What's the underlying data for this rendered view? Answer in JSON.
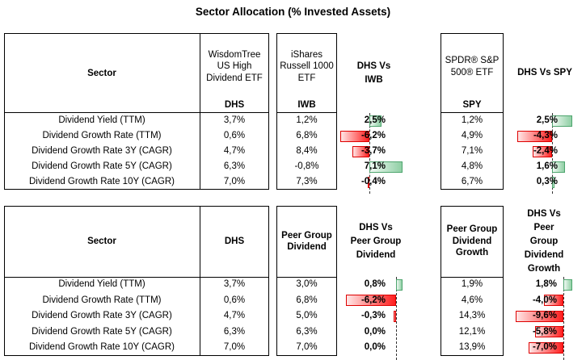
{
  "title": "Sector Allocation (% Invested Assets)",
  "colors": {
    "bar_positive_border": "#4EA56E",
    "bar_positive_fill": "#8FCFA4",
    "bar_negative_border": "#DE0000",
    "bar_negative_fill": "#FF1F1F",
    "axis_dash": "#333333"
  },
  "tables": [
    {
      "sector_header": "Sector",
      "col2": {
        "name_lines": [
          "WisdomTree",
          "US High",
          "Dividend ETF"
        ],
        "ticker": "DHS"
      },
      "col3": {
        "name_lines": [
          "iShares",
          "Russell 1000",
          "ETF"
        ],
        "ticker": "IWB"
      },
      "vs1": {
        "header_lines": [
          "DHS Vs",
          "IWB"
        ]
      },
      "col5": {
        "name_lines": [
          "SPDR® S&P",
          "500® ETF"
        ],
        "ticker": "SPY"
      },
      "vs2": {
        "header_lines": [
          "DHS Vs SPY"
        ]
      },
      "rows": [
        {
          "label": "Dividend Yield (TTM)",
          "col2": "3,7%",
          "col3": "1,2%",
          "vs1_text": "2,5%",
          "vs1_value": 2.5,
          "col5": "1,2%",
          "vs2_text": "2,5%",
          "vs2_value": 2.5
        },
        {
          "label": "Dividend Growth Rate (TTM)",
          "col2": "0,6%",
          "col3": "6,8%",
          "vs1_text": "-6,2%",
          "vs1_value": -6.2,
          "col5": "4,9%",
          "vs2_text": "-4,3%",
          "vs2_value": -4.3
        },
        {
          "label": "Dividend Growth Rate 3Y (CAGR)",
          "col2": "4,7%",
          "col3": "8,4%",
          "vs1_text": "-3,7%",
          "vs1_value": -3.7,
          "col5": "7,1%",
          "vs2_text": "-2,4%",
          "vs2_value": -2.4
        },
        {
          "label": "Dividend Growth Rate 5Y (CAGR)",
          "col2": "6,3%",
          "col3": "-0,8%",
          "vs1_text": "7,1%",
          "vs1_value": 7.1,
          "col5": "4,8%",
          "vs2_text": "1,6%",
          "vs2_value": 1.6
        },
        {
          "label": "Dividend Growth Rate 10Y (CAGR)",
          "col2": "7,0%",
          "col3": "7,3%",
          "vs1_text": "-0,4%",
          "vs1_value": -0.4,
          "col5": "6,7%",
          "vs2_text": "0,3%",
          "vs2_value": 0.3
        }
      ]
    },
    {
      "sector_header": "Sector",
      "col2": {
        "name_lines": [
          "DHS"
        ]
      },
      "col3": {
        "name_lines": [
          "Peer Group",
          "Dividend"
        ]
      },
      "vs1": {
        "header_lines": [
          "DHS Vs",
          "Peer Group",
          "Dividend"
        ]
      },
      "col5": {
        "name_lines": [
          "Peer Group",
          "Dividend",
          "Growth"
        ]
      },
      "vs2": {
        "header_lines": [
          "DHS Vs",
          "Peer",
          "Group",
          "Dividend",
          "Growth"
        ]
      },
      "rows": [
        {
          "label": "Dividend Yield (TTM)",
          "col2": "3,7%",
          "col3": "3,0%",
          "vs1_text": "0,8%",
          "vs1_value": 0.8,
          "col5": "1,9%",
          "vs2_text": "1,8%",
          "vs2_value": 1.8
        },
        {
          "label": "Dividend Growth Rate (TTM)",
          "col2": "0,6%",
          "col3": "6,8%",
          "vs1_text": "-6,2%",
          "vs1_value": -6.2,
          "col5": "4,6%",
          "vs2_text": "-4,0%",
          "vs2_value": -4.0
        },
        {
          "label": "Dividend Growth Rate 3Y (CAGR)",
          "col2": "4,7%",
          "col3": "5,0%",
          "vs1_text": "-0,3%",
          "vs1_value": -0.3,
          "col5": "14,3%",
          "vs2_text": "-9,6%",
          "vs2_value": -9.6
        },
        {
          "label": "Dividend Growth Rate 5Y (CAGR)",
          "col2": "6,3%",
          "col3": "6,3%",
          "vs1_text": "0,0%",
          "vs1_value": 0.0,
          "col5": "12,1%",
          "vs2_text": "-5,8%",
          "vs2_value": -5.8
        },
        {
          "label": "Dividend Growth Rate 10Y (CAGR)",
          "col2": "7,0%",
          "col3": "7,0%",
          "vs1_text": "0,0%",
          "vs1_value": 0.0,
          "col5": "13,9%",
          "vs2_text": "-7,0%",
          "vs2_value": -7.0
        }
      ]
    }
  ],
  "chart_data": [
    {
      "type": "table",
      "title": "Sector Allocation (% Invested Assets)",
      "columns": [
        "Sector",
        "WisdomTree US High Dividend ETF (DHS)",
        "iShares Russell 1000 ETF (IWB)",
        "DHS Vs IWB",
        "SPDR® S&P 500® ETF (SPY)",
        "DHS Vs SPY"
      ],
      "rows": [
        [
          "Dividend Yield (TTM)",
          "3,7%",
          "1,2%",
          "2,5%",
          "1,2%",
          "2,5%"
        ],
        [
          "Dividend Growth Rate (TTM)",
          "0,6%",
          "6,8%",
          "-6,2%",
          "4,9%",
          "-4,3%"
        ],
        [
          "Dividend Growth Rate 3Y (CAGR)",
          "4,7%",
          "8,4%",
          "-3,7%",
          "7,1%",
          "-2,4%"
        ],
        [
          "Dividend Growth Rate 5Y (CAGR)",
          "6,3%",
          "-0,8%",
          "7,1%",
          "4,8%",
          "1,6%"
        ],
        [
          "Dividend Growth Rate 10Y (CAGR)",
          "7,0%",
          "7,3%",
          "-0,4%",
          "6,7%",
          "0,3%"
        ]
      ],
      "notes": "Vs columns rendered as Excel-style data bars: green = positive, red = negative, dashed zero axis"
    },
    {
      "type": "table",
      "columns": [
        "Sector",
        "DHS",
        "Peer Group Dividend",
        "DHS Vs Peer Group Dividend",
        "Peer Group Dividend Growth",
        "DHS Vs Peer Group Dividend Growth"
      ],
      "rows": [
        [
          "Dividend Yield (TTM)",
          "3,7%",
          "3,0%",
          "0,8%",
          "1,9%",
          "1,8%"
        ],
        [
          "Dividend Growth Rate (TTM)",
          "0,6%",
          "6,8%",
          "-6,2%",
          "4,6%",
          "-4,0%"
        ],
        [
          "Dividend Growth Rate 3Y (CAGR)",
          "4,7%",
          "5,0%",
          "-0,3%",
          "14,3%",
          "-9,6%"
        ],
        [
          "Dividend Growth Rate 5Y (CAGR)",
          "6,3%",
          "6,3%",
          "0,0%",
          "12,1%",
          "-5,8%"
        ],
        [
          "Dividend Growth Rate 10Y (CAGR)",
          "7,0%",
          "7,0%",
          "0,0%",
          "13,9%",
          "-7,0%"
        ]
      ],
      "notes": "Vs columns rendered as Excel-style data bars: green = positive, red = negative, dashed zero axis"
    }
  ]
}
